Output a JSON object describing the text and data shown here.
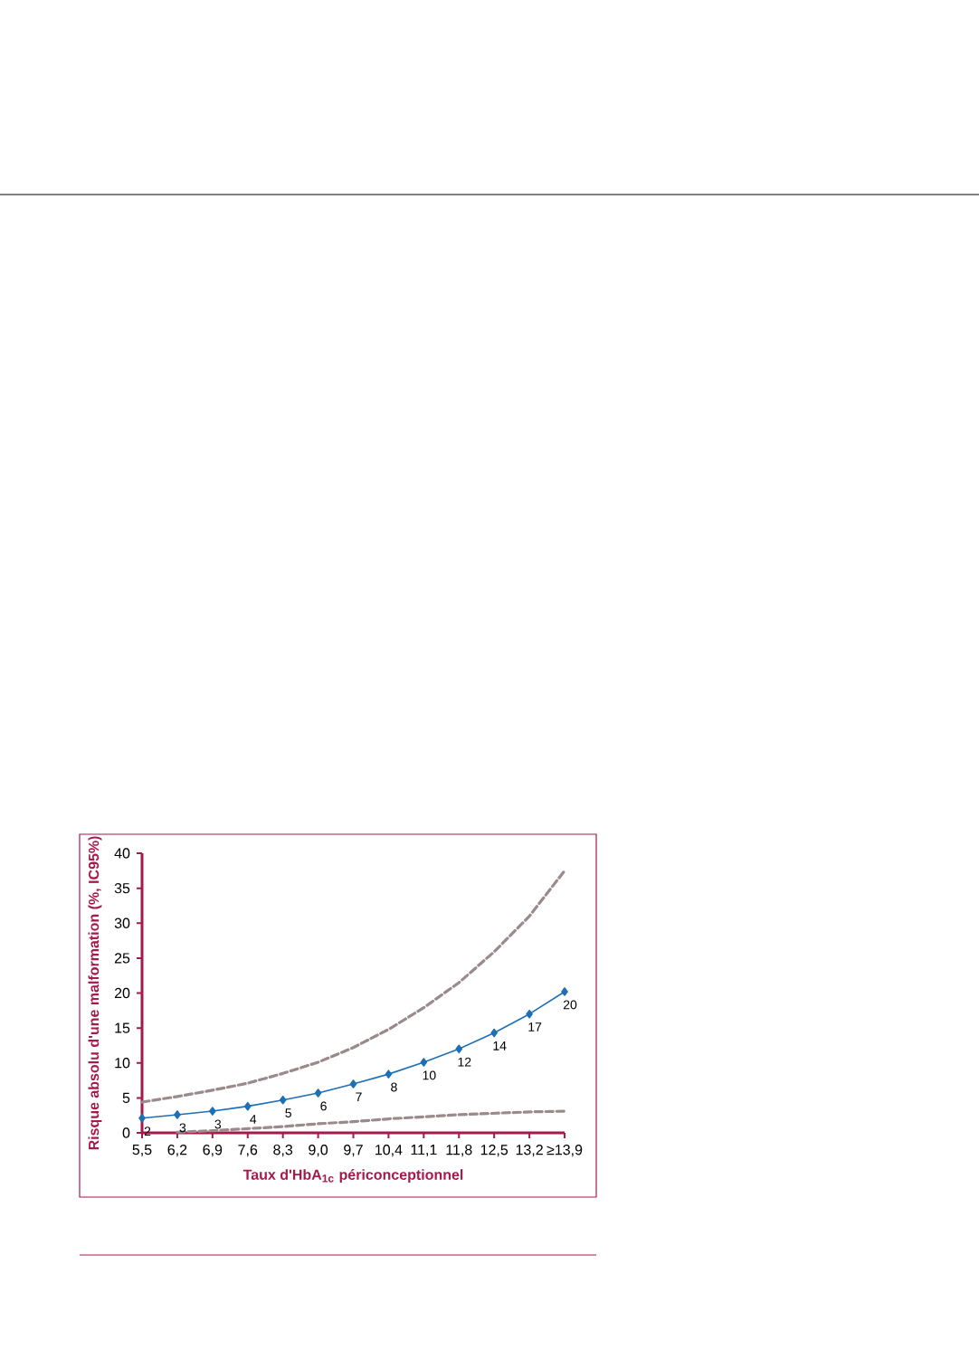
{
  "chart_data": {
    "type": "line",
    "xlabel": "Taux d'HbA$_{1c}$ périconceptionnel",
    "ylabel": "Risque absolu d'une malformation (%, IC95%)",
    "categories": [
      "5,5",
      "6,2",
      "6,9",
      "7,6",
      "8,3",
      "9,0",
      "9,7",
      "10,4",
      "11,1",
      "11,8",
      "12,5",
      "13,2",
      "≥13,9"
    ],
    "ylim": [
      0,
      40
    ],
    "yticks": [
      0,
      5,
      10,
      15,
      20,
      25,
      30,
      35,
      40
    ],
    "grid": false,
    "series": [
      {
        "color": "#1f6fb5",
        "marker": "diamond",
        "line_style": "solid",
        "values": [
          2.1,
          2.6,
          3.1,
          3.8,
          4.7,
          5.7,
          7.0,
          8.4,
          10.1,
          12.0,
          14.3,
          17.0,
          20.2
        ],
        "value_labels": [
          "2",
          "3",
          "3",
          "4",
          "5",
          "6",
          "7",
          "8",
          "10",
          "12",
          "14",
          "17",
          "20"
        ]
      },
      {
        "color": "#9a8a8c",
        "marker": "none",
        "line_style": "dashed",
        "values": [
          4.4,
          5.2,
          6.1,
          7.1,
          8.5,
          10.1,
          12.2,
          14.8,
          17.9,
          21.5,
          25.9,
          31.0,
          37.5
        ]
      },
      {
        "color": "#9a8a8c",
        "marker": "none",
        "line_style": "dashed",
        "values": [
          null,
          0.1,
          0.3,
          0.6,
          0.9,
          1.3,
          1.6,
          2.0,
          2.3,
          2.6,
          2.8,
          3.0,
          3.1
        ]
      }
    ]
  }
}
